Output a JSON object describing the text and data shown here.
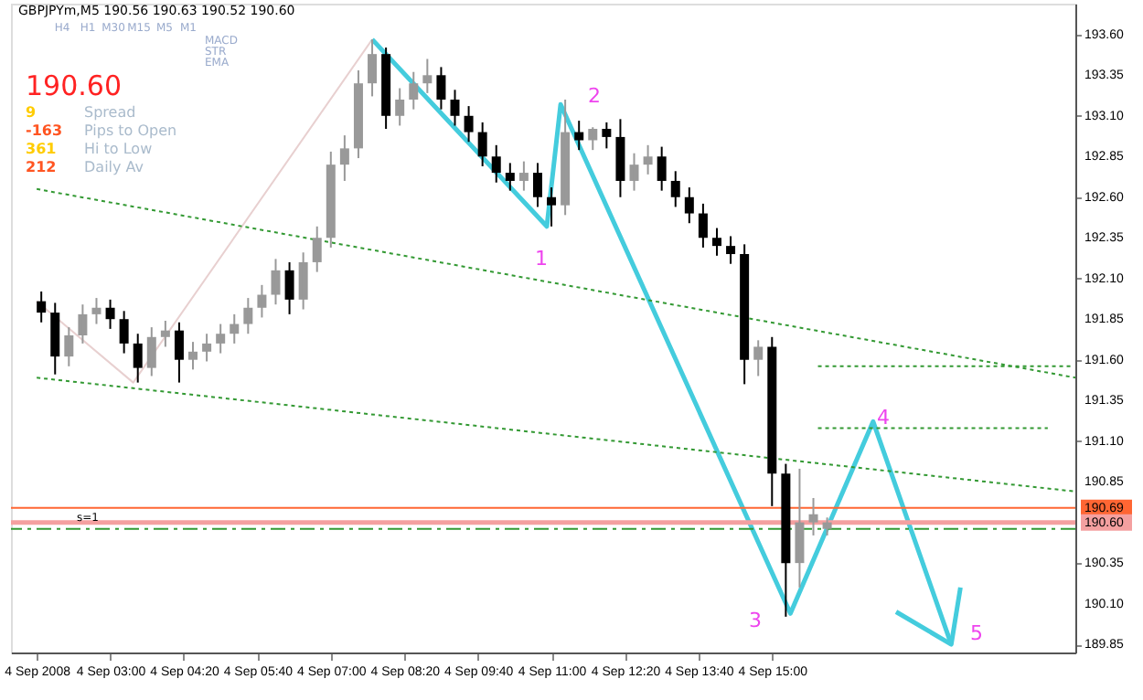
{
  "chart_data": {
    "type": "candlestick",
    "title": "GBPJPYm,M5 190.56 190.63 190.52 190.60",
    "x": [
      "2008-09-04T01:45",
      "2008-09-04T02:00",
      "2008-09-04T02:15",
      "2008-09-04T02:30",
      "2008-09-04T02:45",
      "2008-09-04T03:00",
      "2008-09-04T03:15",
      "2008-09-04T03:30",
      "2008-09-04T03:45",
      "2008-09-04T04:00",
      "2008-09-04T04:15",
      "2008-09-04T04:30",
      "2008-09-04T04:45",
      "2008-09-04T05:00",
      "2008-09-04T05:15",
      "2008-09-04T05:30",
      "2008-09-04T05:45",
      "2008-09-04T06:00",
      "2008-09-04T06:15",
      "2008-09-04T06:30",
      "2008-09-04T06:45",
      "2008-09-04T07:00",
      "2008-09-04T07:15",
      "2008-09-04T07:30",
      "2008-09-04T07:45",
      "2008-09-04T08:00",
      "2008-09-04T08:15",
      "2008-09-04T08:30",
      "2008-09-04T08:45",
      "2008-09-04T09:00",
      "2008-09-04T09:15",
      "2008-09-04T09:30",
      "2008-09-04T09:45",
      "2008-09-04T10:00",
      "2008-09-04T10:15",
      "2008-09-04T10:30",
      "2008-09-04T10:45",
      "2008-09-04T11:00",
      "2008-09-04T11:15",
      "2008-09-04T11:30",
      "2008-09-04T11:45",
      "2008-09-04T12:00",
      "2008-09-04T12:15",
      "2008-09-04T12:30",
      "2008-09-04T12:45",
      "2008-09-04T13:00",
      "2008-09-04T13:15",
      "2008-09-04T13:30",
      "2008-09-04T13:45",
      "2008-09-04T14:00",
      "2008-09-04T14:15",
      "2008-09-04T14:30",
      "2008-09-04T14:45",
      "2008-09-04T15:00",
      "2008-09-04T15:15",
      "2008-09-04T15:30",
      "2008-09-04T15:45",
      "2008-09-04T16:00"
    ],
    "ohlc": [
      [
        191.96,
        192.02,
        191.83,
        191.89
      ],
      [
        191.89,
        191.95,
        191.51,
        191.62
      ],
      [
        191.62,
        191.8,
        191.56,
        191.75
      ],
      [
        191.75,
        191.94,
        191.7,
        191.88
      ],
      [
        191.88,
        191.98,
        191.82,
        191.92
      ],
      [
        191.92,
        191.97,
        191.79,
        191.85
      ],
      [
        191.85,
        191.9,
        191.64,
        191.7
      ],
      [
        191.7,
        191.76,
        191.46,
        191.55
      ],
      [
        191.55,
        191.8,
        191.5,
        191.74
      ],
      [
        191.74,
        191.84,
        191.68,
        191.78
      ],
      [
        191.78,
        191.83,
        191.46,
        191.6
      ],
      [
        191.6,
        191.71,
        191.54,
        191.65
      ],
      [
        191.65,
        191.76,
        191.59,
        191.7
      ],
      [
        191.7,
        191.82,
        191.64,
        191.76
      ],
      [
        191.76,
        191.88,
        191.7,
        191.82
      ],
      [
        191.82,
        191.98,
        191.76,
        191.92
      ],
      [
        191.92,
        192.06,
        191.86,
        192.0
      ],
      [
        192.0,
        192.22,
        191.94,
        192.15
      ],
      [
        192.15,
        192.2,
        191.88,
        191.97
      ],
      [
        191.97,
        192.26,
        191.91,
        192.2
      ],
      [
        192.2,
        192.42,
        192.14,
        192.35
      ],
      [
        192.35,
        192.88,
        192.29,
        192.8
      ],
      [
        192.8,
        192.98,
        192.7,
        192.9
      ],
      [
        192.9,
        193.38,
        192.84,
        193.3
      ],
      [
        193.3,
        193.57,
        193.22,
        193.48
      ],
      [
        193.48,
        193.52,
        193.02,
        193.1
      ],
      [
        193.1,
        193.27,
        193.04,
        193.2
      ],
      [
        193.2,
        193.37,
        193.14,
        193.3
      ],
      [
        193.3,
        193.45,
        193.24,
        193.35
      ],
      [
        193.35,
        193.4,
        193.14,
        193.2
      ],
      [
        193.2,
        193.26,
        193.04,
        193.1
      ],
      [
        193.1,
        193.16,
        192.94,
        193.0
      ],
      [
        193.0,
        193.06,
        192.79,
        192.85
      ],
      [
        192.85,
        192.92,
        192.69,
        192.75
      ],
      [
        192.75,
        192.81,
        192.64,
        192.7
      ],
      [
        192.7,
        192.82,
        192.64,
        192.75
      ],
      [
        192.75,
        192.81,
        192.54,
        192.6
      ],
      [
        192.6,
        192.66,
        192.42,
        192.55
      ],
      [
        192.55,
        193.2,
        192.49,
        193.0
      ],
      [
        193.0,
        193.07,
        192.89,
        192.95
      ],
      [
        192.95,
        193.03,
        192.89,
        193.02
      ],
      [
        193.02,
        193.06,
        192.9,
        192.97
      ],
      [
        192.97,
        193.08,
        192.6,
        192.7
      ],
      [
        192.7,
        192.87,
        192.64,
        192.8
      ],
      [
        192.8,
        192.92,
        192.74,
        192.85
      ],
      [
        192.85,
        192.91,
        192.64,
        192.7
      ],
      [
        192.7,
        192.76,
        192.54,
        192.6
      ],
      [
        192.6,
        192.66,
        192.44,
        192.5
      ],
      [
        192.5,
        192.56,
        192.29,
        192.35
      ],
      [
        192.35,
        192.41,
        192.24,
        192.3
      ],
      [
        192.3,
        192.36,
        192.19,
        192.25
      ],
      [
        192.25,
        192.31,
        191.45,
        191.6
      ],
      [
        191.6,
        191.72,
        191.5,
        191.68
      ],
      [
        191.68,
        191.74,
        190.7,
        190.9
      ],
      [
        190.9,
        190.96,
        190.02,
        190.35
      ],
      [
        190.35,
        190.93,
        190.2,
        190.6
      ],
      [
        190.6,
        190.75,
        190.52,
        190.65
      ],
      [
        190.56,
        190.63,
        190.52,
        190.6
      ]
    ],
    "series": [
      {
        "type": "line",
        "color": "#e8d0d0",
        "line_style": "solid",
        "x": [
          "2008-09-04T01:40",
          "2008-09-04T03:25",
          "2008-09-04T07:45"
        ],
        "values": [
          191.96,
          191.46,
          193.57
        ]
      },
      {
        "type": "line",
        "color": "#44ccdd",
        "line_style": "solid",
        "x": [
          "2008-09-04T07:45",
          "2008-09-04T10:55",
          "2008-09-04T11:10",
          "2008-09-04T15:20",
          "2008-09-04T16:50",
          "2008-09-04T18:15"
        ],
        "values": [
          193.57,
          192.42,
          193.17,
          190.04,
          191.22,
          189.85
        ]
      },
      {
        "type": "line",
        "color": "#44ccdd",
        "line_style": "solid",
        "x": [
          "2008-09-04T17:15",
          "2008-09-04T18:15",
          "2008-09-04T18:25"
        ],
        "values": [
          190.05,
          189.85,
          190.2
        ]
      },
      {
        "type": "line",
        "color": "#339933",
        "line_style": "dotted",
        "x": [
          "2008-09-04T01:40",
          "2008-09-04T20:30"
        ],
        "values": [
          192.65,
          191.49
        ]
      },
      {
        "type": "line",
        "color": "#339933",
        "line_style": "dotted",
        "x": [
          "2008-09-04T01:40",
          "2008-09-04T20:30"
        ],
        "values": [
          191.49,
          190.79
        ]
      },
      {
        "type": "line",
        "color": "#339933",
        "line_style": "dotted",
        "x": [
          "2008-09-04T15:50",
          "2008-09-04T20:25"
        ],
        "values": [
          191.56,
          191.56
        ]
      },
      {
        "type": "line",
        "color": "#339933",
        "line_style": "dotted",
        "x": [
          "2008-09-04T15:50",
          "2008-09-04T20:00"
        ],
        "values": [
          191.18,
          191.18
        ]
      }
    ],
    "ref_lines": [
      {
        "axis": "y",
        "value": 190.69,
        "color": "#ff6633",
        "line_style": "solid",
        "label": "190.69"
      },
      {
        "axis": "y",
        "value": 190.6,
        "color": "#f4a0a0",
        "line_style": "solid",
        "label": "190.60"
      },
      {
        "axis": "y",
        "value": 190.56,
        "color": "#339933",
        "line_style": "dashed"
      }
    ],
    "annotations": [
      "1",
      "2",
      "3",
      "4",
      "5",
      "s=1",
      "H4",
      "H1",
      "M30",
      "M15",
      "M5",
      "M1",
      "MACD",
      "STR",
      "EMA",
      "190.60",
      "9",
      "Spread",
      "-163",
      "Pips to Open",
      "361",
      "Hi to Low",
      "212",
      "Daily Av"
    ],
    "xlim": [
      "2008-09-04T01:12",
      "2008-09-04T20:30"
    ],
    "xticks": [
      {
        "value": "2008-09-04T01:40",
        "label": "4 Sep 2008"
      },
      {
        "value": "2008-09-04T03:00",
        "label": "4 Sep 03:00"
      },
      {
        "value": "2008-09-04T04:20",
        "label": "4 Sep 04:20"
      },
      {
        "value": "2008-09-04T05:40",
        "label": "4 Sep 05:40"
      },
      {
        "value": "2008-09-04T07:00",
        "label": "4 Sep 07:00"
      },
      {
        "value": "2008-09-04T08:20",
        "label": "4 Sep 08:20"
      },
      {
        "value": "2008-09-04T09:40",
        "label": "4 Sep 09:40"
      },
      {
        "value": "2008-09-04T11:00",
        "label": "4 Sep 11:00"
      },
      {
        "value": "2008-09-04T12:20",
        "label": "4 Sep 12:20"
      },
      {
        "value": "2008-09-04T13:40",
        "label": "4 Sep 13:40"
      },
      {
        "value": "2008-09-04T15:00",
        "label": "4 Sep 15:00"
      }
    ],
    "ylim": [
      189.8,
      193.79
    ],
    "yticks": [
      {
        "value": 193.6,
        "label": "193.60"
      },
      {
        "value": 193.35,
        "label": "193.35"
      },
      {
        "value": 193.1,
        "label": "193.10"
      },
      {
        "value": 192.85,
        "label": "192.85"
      },
      {
        "value": 192.6,
        "label": "192.60"
      },
      {
        "value": 192.35,
        "label": "192.35"
      },
      {
        "value": 192.1,
        "label": "192.10"
      },
      {
        "value": 191.85,
        "label": "191.85"
      },
      {
        "value": 191.6,
        "label": "191.60"
      },
      {
        "value": 191.35,
        "label": "191.35"
      },
      {
        "value": 191.1,
        "label": "191.10"
      },
      {
        "value": 190.85,
        "label": "190.85"
      },
      {
        "value": 190.35,
        "label": "190.35"
      },
      {
        "value": 190.1,
        "label": "190.10"
      },
      {
        "value": 189.85,
        "label": "189.85"
      }
    ],
    "grid": false
  }
}
